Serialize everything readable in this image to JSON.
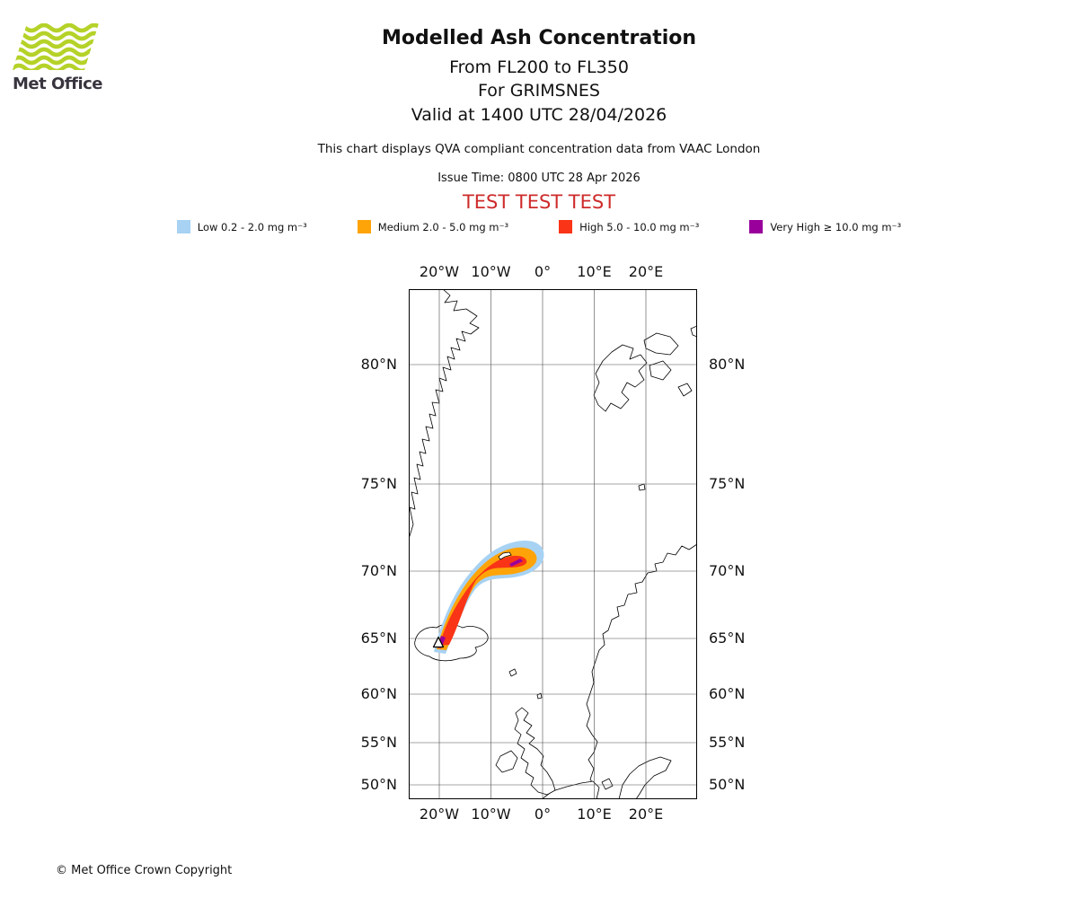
{
  "logo": {
    "text": "Met Office"
  },
  "header": {
    "title": "Modelled Ash Concentration",
    "subtitle_flight_levels": "From FL200 to FL350",
    "subtitle_volcano": "For GRIMSNES",
    "subtitle_valid": "Valid at 1400 UTC 28/04/2026",
    "description": "This chart displays QVA compliant concentration data from VAAC London",
    "issue_time": "Issue Time: 0800 UTC 28 Apr 2026",
    "test_banner": "TEST TEST TEST"
  },
  "legend": {
    "items": [
      {
        "key": "low",
        "label": "Low 0.2 - 2.0 mg m⁻³",
        "color": "#A7D2F3"
      },
      {
        "key": "medium",
        "label": "Medium 2.0 - 5.0 mg m⁻³",
        "color": "#FFA408"
      },
      {
        "key": "high",
        "label": "High 5.0 - 10.0 mg m⁻³",
        "color": "#F93417"
      },
      {
        "key": "very-high",
        "label": "Very High ≥ 10.0 mg m⁻³",
        "color": "#99009B"
      }
    ]
  },
  "map": {
    "lon_labels": [
      "20°W",
      "10°W",
      "0°",
      "10°E",
      "20°E"
    ],
    "lat_labels": [
      "80°N",
      "75°N",
      "70°N",
      "65°N",
      "60°N",
      "55°N",
      "50°N"
    ]
  },
  "footer": {
    "copyright": "© Met Office Crown Copyright"
  }
}
